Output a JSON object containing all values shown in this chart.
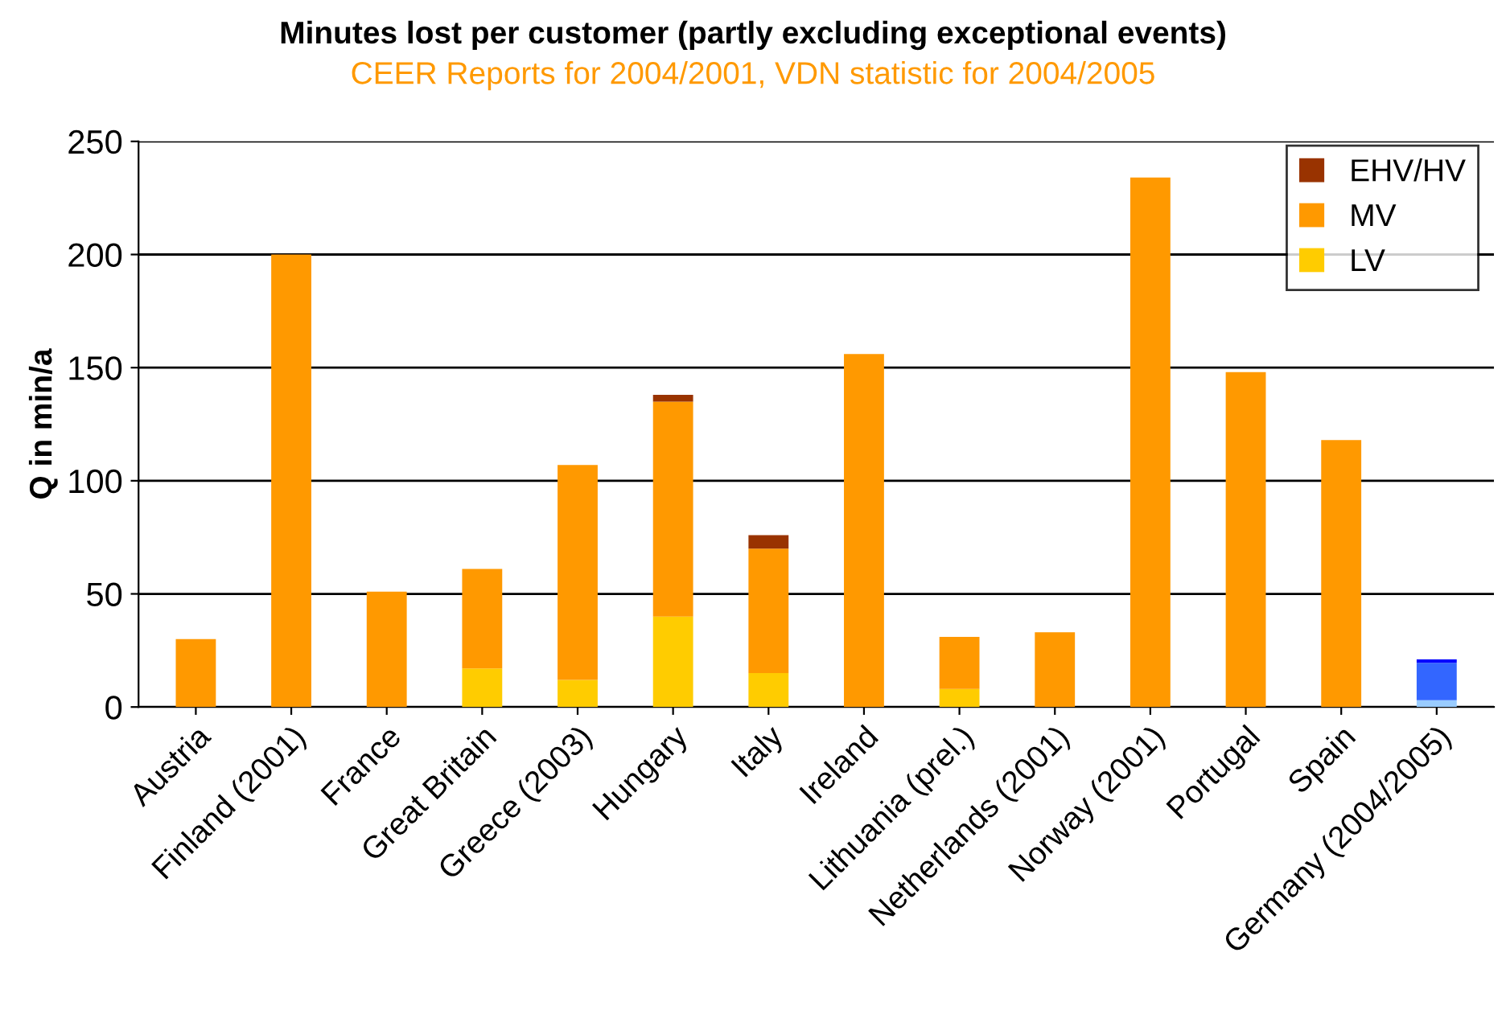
{
  "chart_data": {
    "type": "bar",
    "stacked": true,
    "title": "Minutes lost per customer (partly excluding exceptional events)",
    "subtitle": "CEER Reports for 2004/2001, VDN statistic for 2004/2005",
    "ylabel": "Q in min/a",
    "categories": [
      "Austria",
      "Finland (2001)",
      "France",
      "Great Britain",
      "Greece (2003)",
      "Hungary",
      "Italy",
      "Ireland",
      "Lithuania (prel.)",
      "Netherlands (2001)",
      "Norway (2001)",
      "Portugal",
      "Spain",
      "Germany (2004/2005)"
    ],
    "series": [
      {
        "name": "LV",
        "color": "#ffcc00",
        "colors": [
          "#ffcc00",
          "#ffcc00",
          "#ffcc00",
          "#ffcc00",
          "#ffcc00",
          "#ffcc00",
          "#ffcc00",
          "#ffcc00",
          "#ffcc00",
          "#ffcc00",
          "#ffcc00",
          "#ffcc00",
          "#ffcc00",
          "#99ccff"
        ],
        "values": [
          null,
          null,
          null,
          17,
          12,
          40,
          15,
          null,
          8,
          null,
          null,
          null,
          null,
          3
        ]
      },
      {
        "name": "MV",
        "color": "#ff9900",
        "colors": [
          "#ff9900",
          "#ff9900",
          "#ff9900",
          "#ff9900",
          "#ff9900",
          "#ff9900",
          "#ff9900",
          "#ff9900",
          "#ff9900",
          "#ff9900",
          "#ff9900",
          "#ff9900",
          "#ff9900",
          "#3366ff"
        ],
        "values": [
          30,
          200,
          51,
          44,
          95,
          95,
          55,
          156,
          23,
          33,
          234,
          148,
          118,
          16.5
        ]
      },
      {
        "name": "EHV/HV",
        "color": "#993300",
        "colors": [
          "#993300",
          "#993300",
          "#993300",
          "#993300",
          "#993300",
          "#993300",
          "#993300",
          "#993300",
          "#993300",
          "#993300",
          "#993300",
          "#993300",
          "#993300",
          "#0000ff"
        ],
        "values": [
          null,
          null,
          null,
          null,
          null,
          3,
          6,
          null,
          null,
          null,
          null,
          null,
          null,
          1.5
        ]
      }
    ],
    "ylim": [
      0,
      250
    ],
    "yticks": [
      0,
      50,
      100,
      150,
      200,
      250
    ],
    "grid": "y",
    "legend": "top right"
  }
}
